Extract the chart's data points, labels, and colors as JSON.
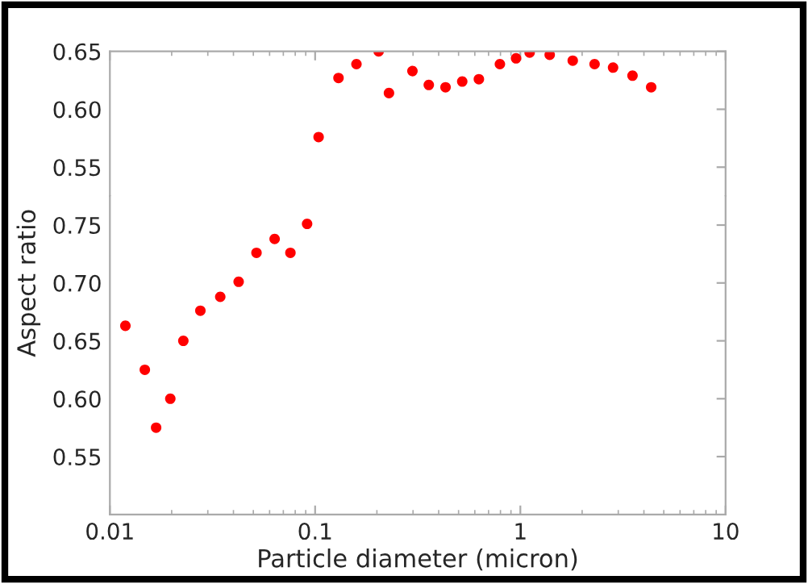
{
  "chart_data": [
    {
      "type": "scatter",
      "ylabel": "Aspect ratio",
      "log": "x",
      "marker": "circle",
      "grid": false,
      "tick_labels": "y",
      "x": [
        0.104,
        0.13,
        0.159,
        0.204,
        0.229,
        0.298,
        0.358,
        0.432,
        0.521,
        0.628,
        0.795,
        0.953,
        1.11,
        1.39,
        1.8,
        2.3,
        2.83,
        3.52,
        4.34
      ],
      "series": [
        {
          "color": "#ff0000",
          "values": [
            0.576,
            0.627,
            0.639,
            0.65,
            0.614,
            0.633,
            0.621,
            0.619,
            0.624,
            0.626,
            0.639,
            0.644,
            0.649,
            0.647,
            0.642,
            0.639,
            0.636,
            0.629,
            0.619
          ]
        }
      ],
      "xlim": [
        0.01,
        10
      ],
      "xticks": [
        0.01,
        0.1,
        1,
        10
      ],
      "ylim": [
        0.525,
        0.65
      ],
      "yticks": [
        {
          "value": 0.55,
          "label": "0.55"
        },
        {
          "value": 0.6,
          "label": "0.60"
        },
        {
          "value": 0.65,
          "label": "0.65"
        }
      ]
    },
    {
      "type": "scatter",
      "xlabel": "Particle diameter (micron)",
      "log": "x",
      "marker": "circle",
      "grid": false,
      "x": [
        0.0119,
        0.0148,
        0.0168,
        0.0197,
        0.0228,
        0.0276,
        0.0345,
        0.0424,
        0.0518,
        0.0635,
        0.0758,
        0.0914
      ],
      "series": [
        {
          "color": "#ff0000",
          "values": [
            0.663,
            0.625,
            0.575,
            0.6,
            0.65,
            0.676,
            0.688,
            0.701,
            0.726,
            0.738,
            0.726,
            0.751
          ]
        }
      ],
      "xlim": [
        0.01,
        10
      ],
      "xticks": [
        0.01,
        0.1,
        1,
        10
      ],
      "ylim": [
        0.5,
        0.775
      ],
      "yticks": [
        {
          "value": 0.55,
          "label": "0.55"
        },
        {
          "value": 0.6,
          "label": "0.60"
        },
        {
          "value": 0.65,
          "label": "0.65"
        },
        {
          "value": 0.7,
          "label": "0.70"
        },
        {
          "value": 0.75,
          "label": "0.75"
        }
      ]
    }
  ]
}
